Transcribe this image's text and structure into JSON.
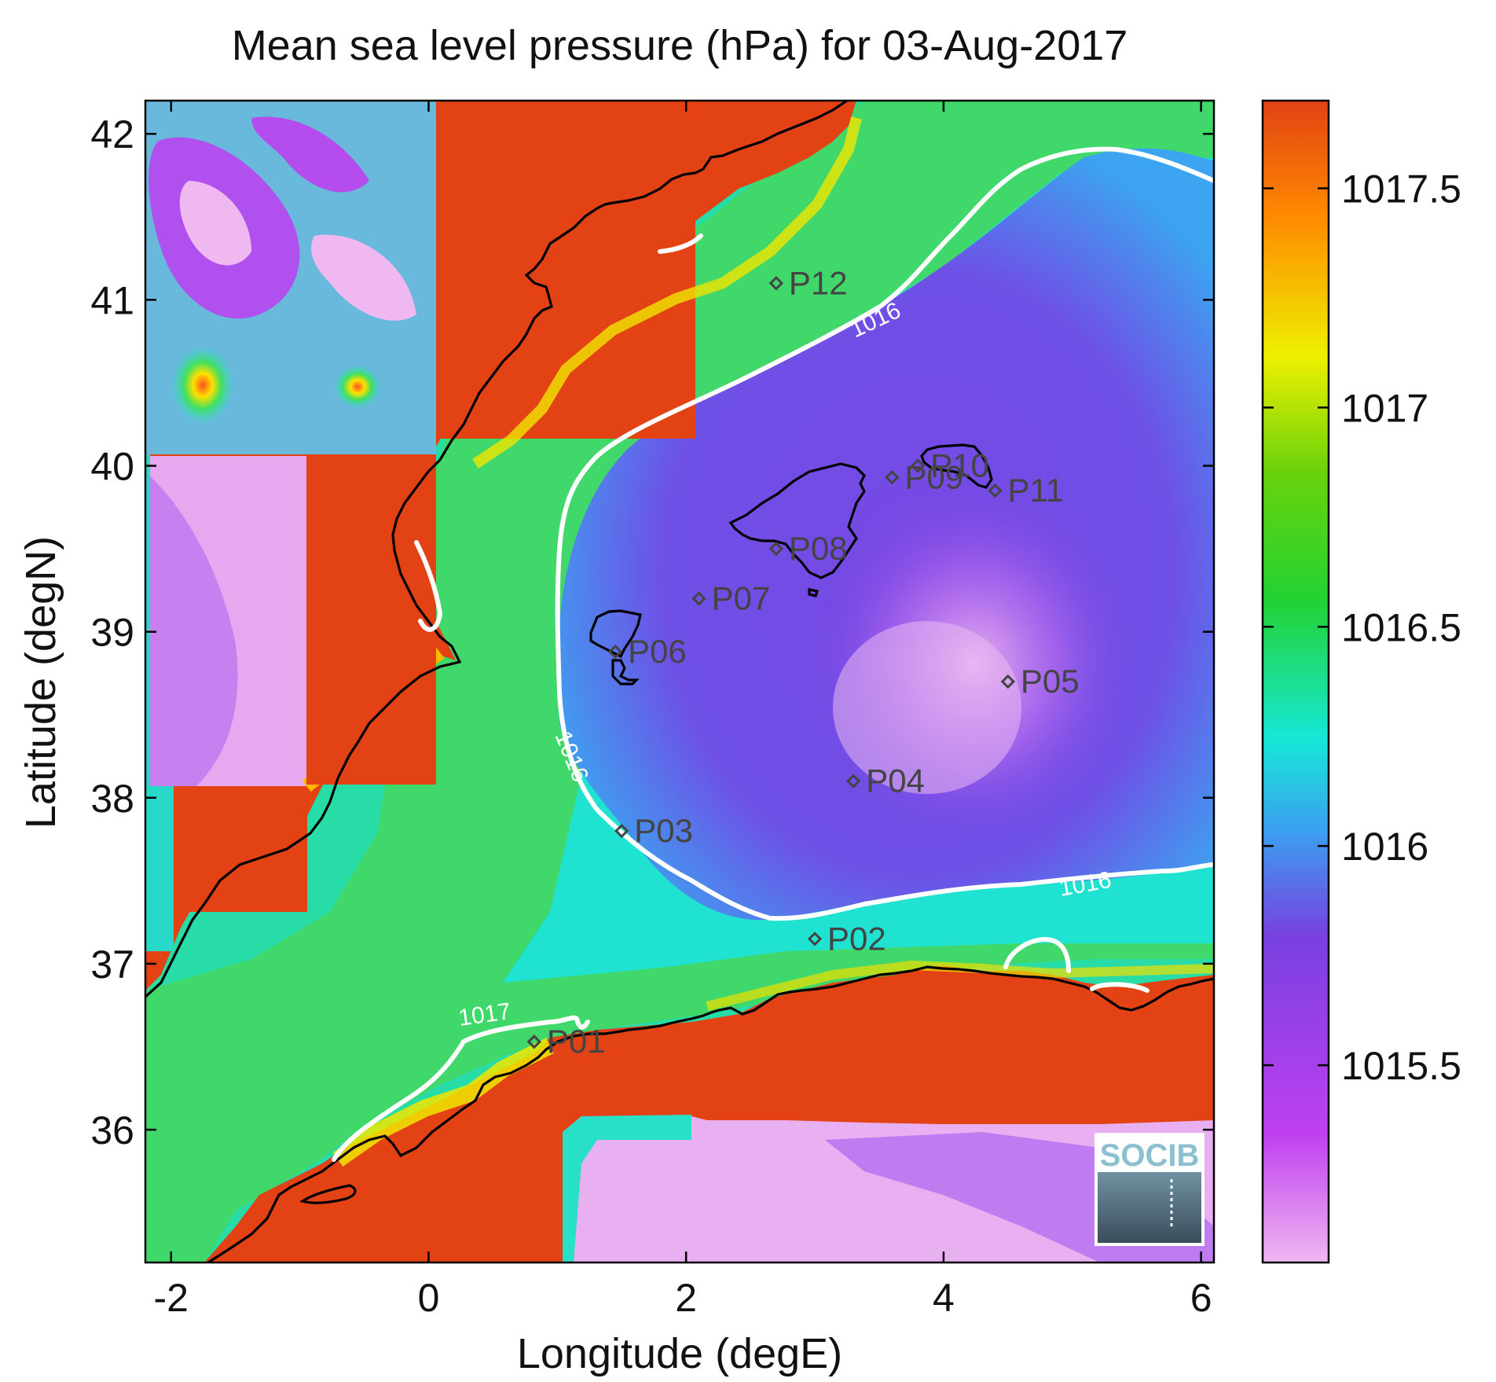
{
  "title": "Mean sea level pressure (hPa) for 03-Aug-2017",
  "xlabel": "Longitude (degE)",
  "ylabel": "Latitude (degN)",
  "logo_text": "SOCIB",
  "chart_data": {
    "type": "heatmap",
    "title": "Mean sea level pressure (hPa) for 03-Aug-2017",
    "xlabel": "Longitude (degE)",
    "ylabel": "Latitude (degN)",
    "xlim": [
      -2.2,
      6.1
    ],
    "ylim": [
      35.2,
      42.2
    ],
    "xticks": [
      -2,
      0,
      2,
      4,
      6
    ],
    "yticks": [
      36,
      37,
      38,
      39,
      40,
      41,
      42
    ],
    "colorbar": {
      "range": [
        1015.05,
        1017.7
      ],
      "ticks": [
        1015.5,
        1016,
        1016.5,
        1017,
        1017.5
      ],
      "colormap": [
        "#f0b8f0",
        "#c040f0",
        "#7840e0",
        "#3c9ef0",
        "#16e8d8",
        "#22d232",
        "#6ad20c",
        "#eef000",
        "#ff8a00",
        "#e24214"
      ]
    },
    "contours": [
      {
        "level": 1016,
        "label": "1016"
      },
      {
        "level": 1017,
        "label": "1017"
      }
    ],
    "points": [
      {
        "name": "P01",
        "lon": 0.82,
        "lat": 36.53
      },
      {
        "name": "P02",
        "lon": 3.0,
        "lat": 37.15
      },
      {
        "name": "P03",
        "lon": 1.5,
        "lat": 37.8
      },
      {
        "name": "P04",
        "lon": 3.3,
        "lat": 38.1
      },
      {
        "name": "P05",
        "lon": 4.5,
        "lat": 38.7
      },
      {
        "name": "P06",
        "lon": 1.45,
        "lat": 38.88
      },
      {
        "name": "P07",
        "lon": 2.1,
        "lat": 39.2
      },
      {
        "name": "P08",
        "lon": 2.7,
        "lat": 39.5
      },
      {
        "name": "P09",
        "lon": 3.6,
        "lat": 39.93
      },
      {
        "name": "P10",
        "lon": 3.8,
        "lat": 40.0
      },
      {
        "name": "P11",
        "lon": 4.4,
        "lat": 39.85
      },
      {
        "name": "P12",
        "lon": 2.7,
        "lat": 41.1
      }
    ]
  }
}
